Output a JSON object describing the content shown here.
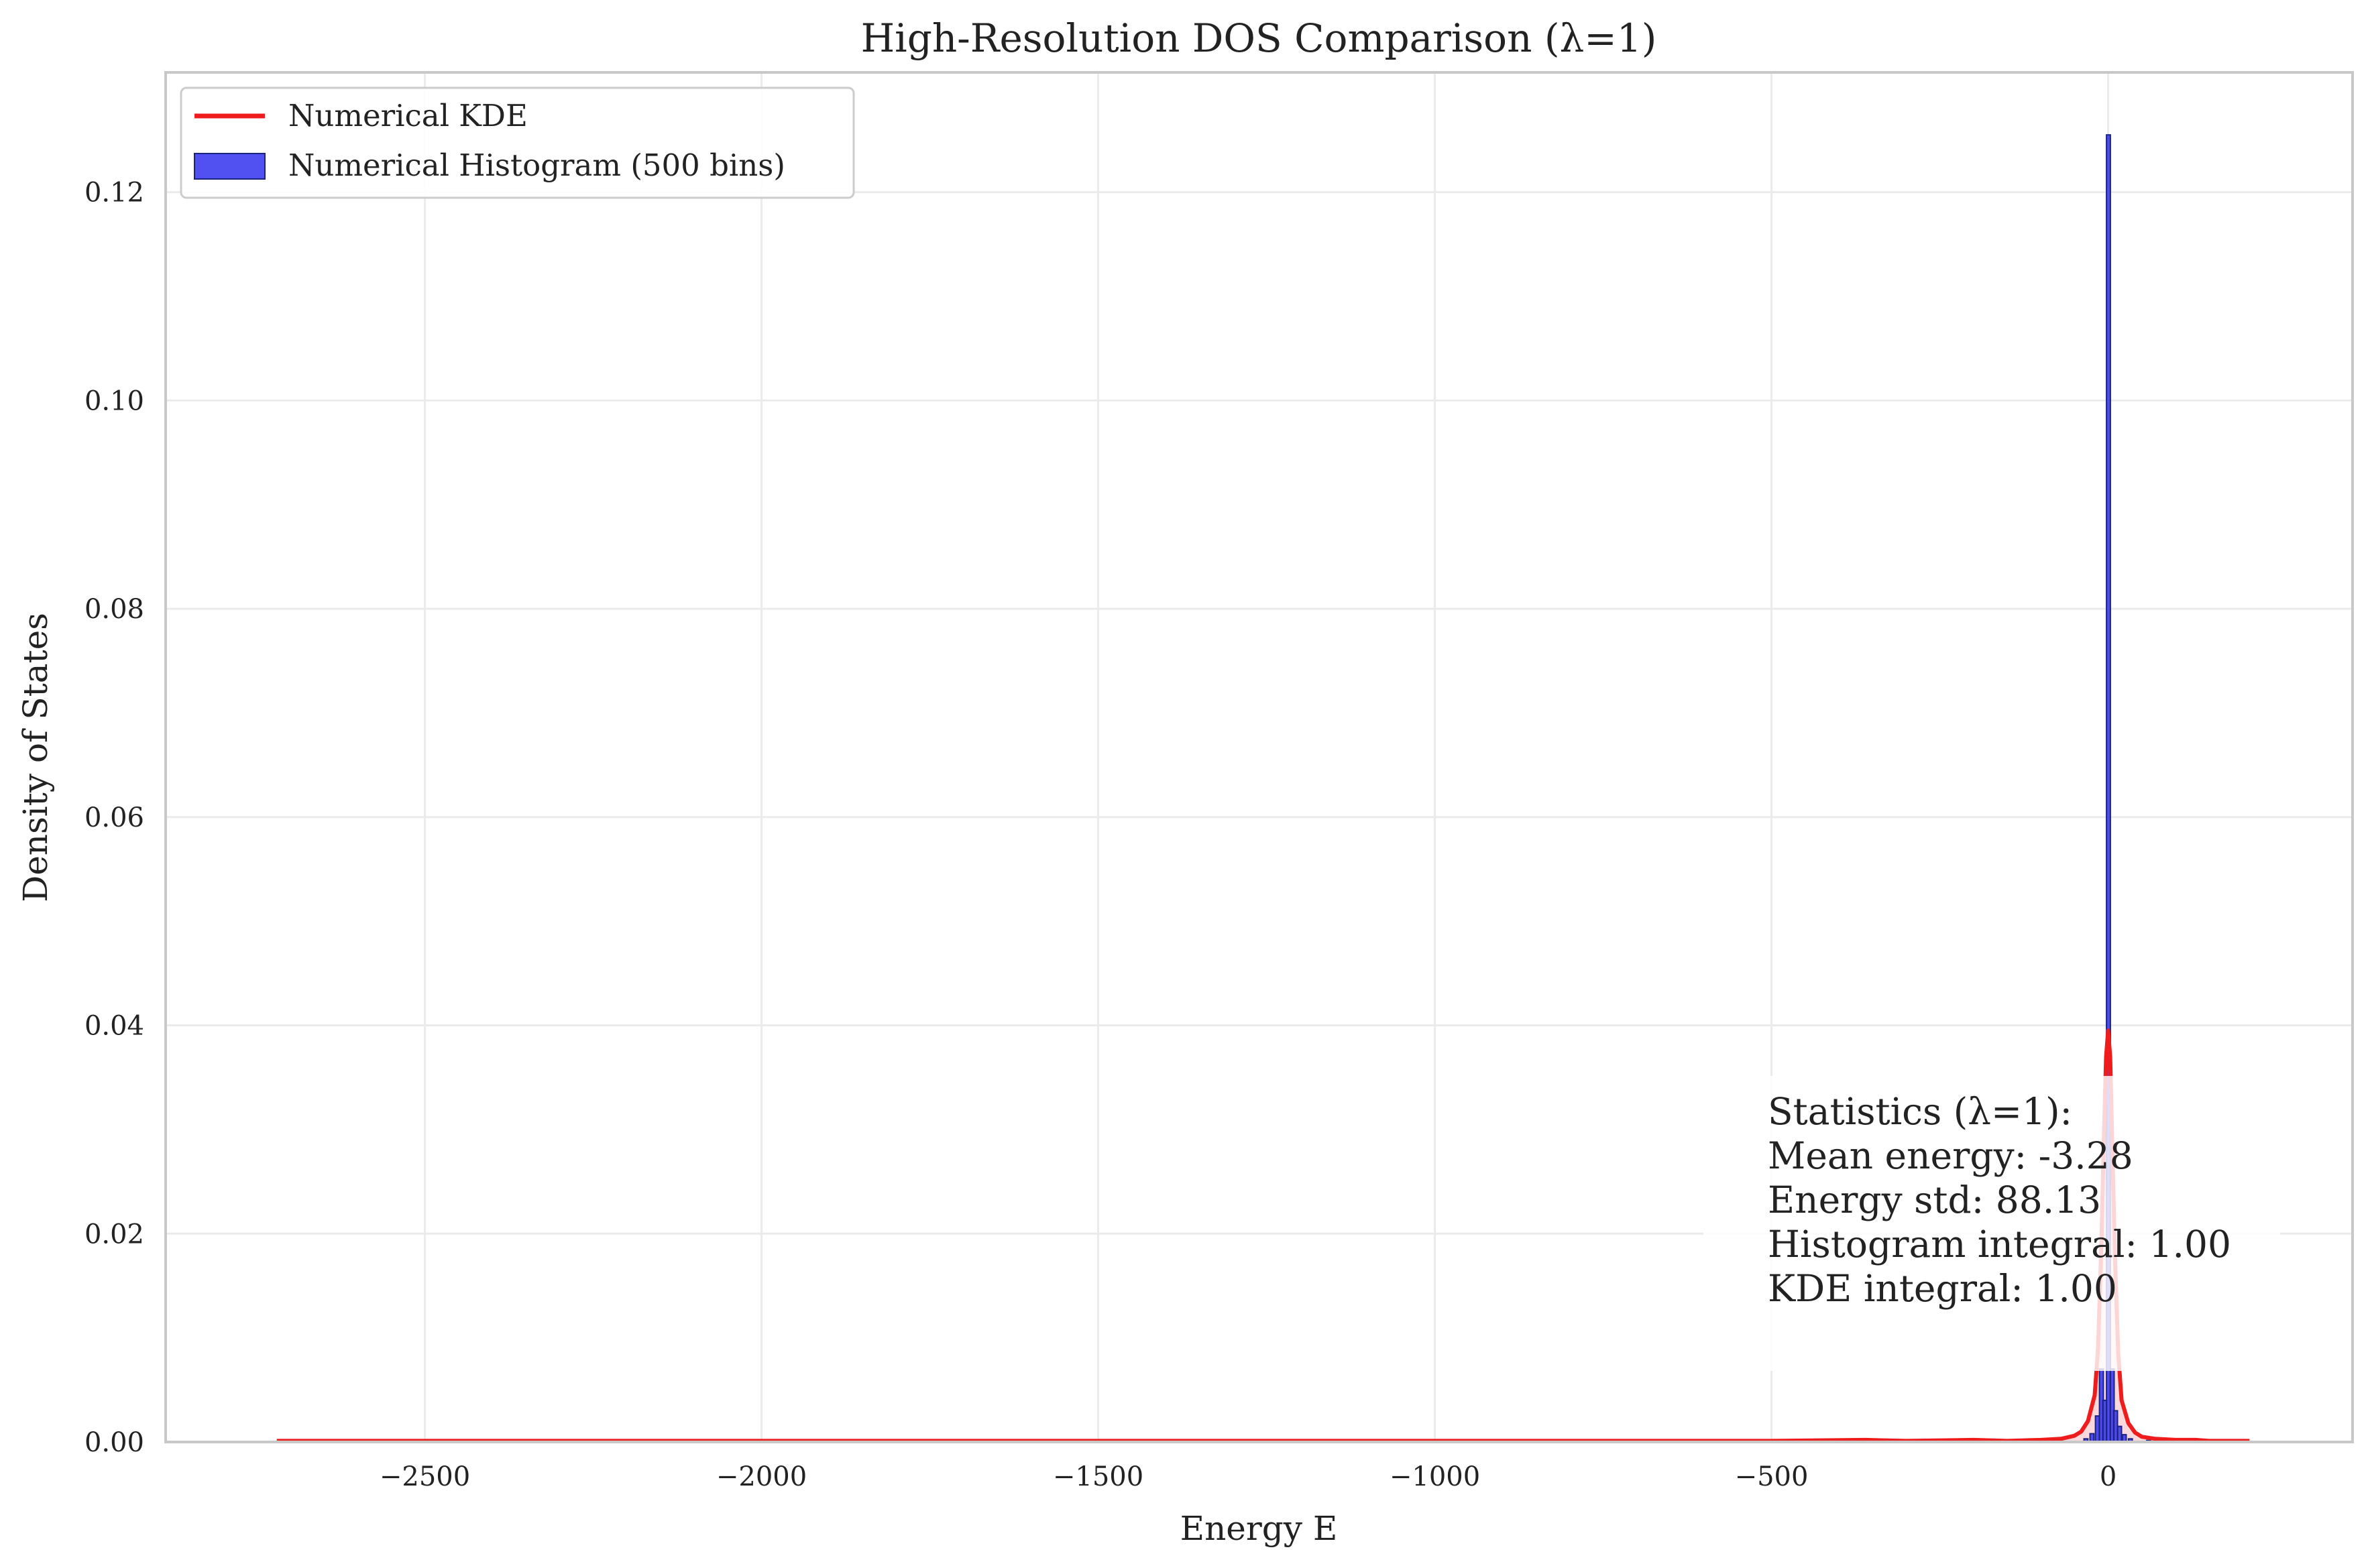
{
  "chart_data": {
    "type": "bar",
    "title": "High-Resolution DOS Comparison (λ=1)",
    "xlabel": "Energy E",
    "ylabel": "Density of States",
    "xlim": [
      -2885,
      363
    ],
    "ylim": [
      0,
      0.1315
    ],
    "x_ticks": [
      -2500,
      -2000,
      -1500,
      -1000,
      -500,
      0
    ],
    "x_tick_labels": [
      "−2500",
      "−2000",
      "−1500",
      "−1000",
      "−500",
      "0"
    ],
    "y_ticks": [
      0.0,
      0.02,
      0.04,
      0.06,
      0.08,
      0.1,
      0.12
    ],
    "y_tick_labels": [
      "0.00",
      "0.02",
      "0.04",
      "0.06",
      "0.08",
      "0.10",
      "0.12"
    ],
    "grid": true,
    "legend": {
      "placement": "upper-left",
      "entries": [
        {
          "label": "Numerical KDE",
          "kind": "line",
          "color": "#ee1c1c"
        },
        {
          "label": "Numerical Histogram (500 bins)",
          "kind": "patch",
          "color": "#3333ee"
        }
      ]
    },
    "series": [
      {
        "name": "Numerical Histogram (500 bins)",
        "kind": "histogram",
        "color": "#3333ee",
        "edge_color": "#1a237e",
        "bin_width": 5.8,
        "bins": [
          {
            "x": -33,
            "y": 0.0003
          },
          {
            "x": -24,
            "y": 0.0008
          },
          {
            "x": -16,
            "y": 0.0025
          },
          {
            "x": -10,
            "y": 0.007
          },
          {
            "x": -5,
            "y": 0.004
          },
          {
            "x": 0.5,
            "y": 0.1255
          },
          {
            "x": 6,
            "y": 0.007
          },
          {
            "x": 11,
            "y": 0.003
          },
          {
            "x": 17,
            "y": 0.0015
          },
          {
            "x": 24,
            "y": 0.0007
          },
          {
            "x": 33,
            "y": 0.0003
          },
          {
            "x": 60,
            "y": 0.00015
          }
        ]
      },
      {
        "name": "Numerical KDE",
        "kind": "line",
        "color": "#ee1c1c",
        "x": [
          -2720,
          -2000,
          -1500,
          -1000,
          -500,
          -360,
          -300,
          -200,
          -150,
          -100,
          -70,
          -50,
          -40,
          -30,
          -20,
          -15,
          -10,
          -6,
          -3,
          0,
          3,
          6,
          10,
          15,
          20,
          30,
          40,
          50,
          70,
          100,
          130,
          150,
          210
        ],
        "y": [
          0.0001,
          0.0001,
          0.0001,
          0.0001,
          0.0001,
          0.0002,
          0.0001,
          0.0002,
          0.0001,
          0.0002,
          0.0003,
          0.0006,
          0.001,
          0.002,
          0.0045,
          0.009,
          0.019,
          0.03,
          0.037,
          0.0395,
          0.037,
          0.029,
          0.018,
          0.0085,
          0.004,
          0.0018,
          0.0009,
          0.0005,
          0.0003,
          0.0002,
          0.0002,
          0.0001,
          0.0001
        ]
      }
    ],
    "annotation": {
      "lines": [
        "Statistics (λ=1):",
        "Mean energy: -3.28",
        "Energy std: 88.13",
        "Histogram integral: 1.00",
        "KDE integral: 1.00"
      ],
      "placement": "lower-right"
    }
  }
}
